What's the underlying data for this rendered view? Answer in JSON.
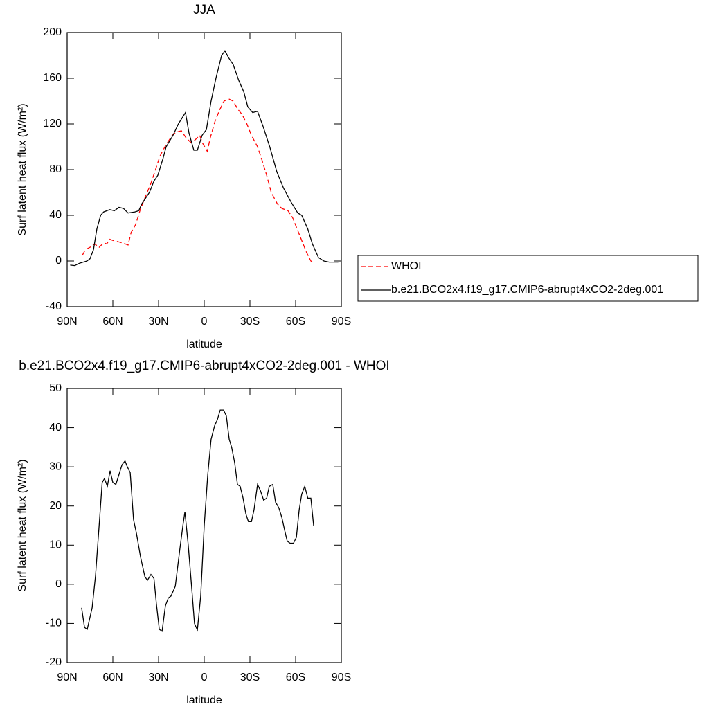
{
  "chart_data": [
    {
      "type": "line",
      "title": "JJA",
      "xlabel": "latitude",
      "ylabel": "Surf latent heat flux (W/m²)",
      "xlim": [
        90,
        -90
      ],
      "xticks": [
        {
          "value": 90,
          "label": "90N"
        },
        {
          "value": 60,
          "label": "60N"
        },
        {
          "value": 30,
          "label": "30N"
        },
        0,
        {
          "value": -30,
          "label": "30S"
        },
        {
          "value": -60,
          "label": "60S"
        },
        {
          "value": -90,
          "label": "90S"
        }
      ],
      "ylim": [
        -40,
        200
      ],
      "yticks": [
        -40,
        0,
        40,
        80,
        120,
        160,
        200
      ],
      "legend": "right",
      "series": [
        {
          "name": "WHOI",
          "color": "#ff0000",
          "dashed": true,
          "x": [
            80,
            78,
            75,
            72,
            69,
            66,
            64,
            62,
            60,
            57,
            54,
            50,
            48,
            45,
            42,
            39,
            35,
            32,
            29,
            25,
            21,
            18,
            15,
            12,
            9,
            6,
            3,
            1,
            -2,
            -4,
            -7,
            -10,
            -13,
            -16,
            -19,
            -22,
            -25,
            -28,
            -31,
            -35,
            -38,
            -41,
            -44,
            -48,
            -51,
            -55,
            -58,
            -61,
            -64,
            -67,
            -70,
            -72
          ],
          "values": [
            5,
            10,
            12,
            15,
            12,
            16,
            15,
            19,
            18,
            17,
            16,
            14,
            25,
            32,
            45,
            55,
            68,
            80,
            92,
            102,
            110,
            113,
            114,
            108,
            104,
            106,
            110,
            103,
            96,
            108,
            122,
            132,
            140,
            142,
            140,
            133,
            128,
            120,
            110,
            100,
            88,
            75,
            60,
            50,
            46,
            44,
            38,
            28,
            18,
            8,
            0,
            -2
          ]
        },
        {
          "name": "b.e21.BCO2x4.f19_g17.CMIP6-abrupt4xCO2-2deg.001",
          "color": "#000000",
          "dashed": false,
          "x": [
            88,
            85,
            82,
            77,
            75,
            72.7,
            70.5,
            68,
            66,
            62,
            59,
            56,
            53,
            50,
            45.5,
            43,
            41,
            36,
            33,
            30.5,
            27,
            25,
            20.5,
            17,
            12.3,
            10,
            6.8,
            4.5,
            1.4,
            -1.4,
            -4.5,
            -7.7,
            -11.4,
            -13.6,
            -16,
            -19,
            -22.7,
            -26,
            -28.6,
            -31.8,
            -35,
            -38.6,
            -43,
            -47.7,
            -52,
            -56.8,
            -61.4,
            -64,
            -68,
            -71,
            -75,
            -78.6,
            -82,
            -88
          ],
          "values": [
            -3.6,
            -4,
            -2,
            0,
            2,
            10,
            28,
            40,
            43,
            45,
            44,
            47,
            46,
            42,
            43,
            44,
            50,
            60,
            70,
            75,
            90,
            100,
            110,
            120,
            130,
            112,
            97,
            97,
            110,
            115,
            140,
            160,
            180,
            184,
            178,
            172,
            158,
            148,
            135,
            130,
            131,
            118,
            100,
            78,
            64,
            52,
            42,
            40,
            28,
            15,
            3,
            0,
            -1,
            -1
          ]
        }
      ]
    },
    {
      "type": "line",
      "title": "b.e21.BCO2x4.f19_g17.CMIP6-abrupt4xCO2-2deg.001 - WHOI",
      "xlabel": "latitude",
      "ylabel": "Surf latent heat flux (W/m²)",
      "xlim": [
        90,
        -90
      ],
      "xticks": [
        {
          "value": 90,
          "label": "90N"
        },
        {
          "value": 60,
          "label": "60N"
        },
        {
          "value": 30,
          "label": "30N"
        },
        0,
        {
          "value": -30,
          "label": "30S"
        },
        {
          "value": -60,
          "label": "60S"
        },
        {
          "value": -90,
          "label": "90S"
        }
      ],
      "ylim": [
        -20,
        50
      ],
      "yticks": [
        -20,
        -10,
        0,
        10,
        20,
        30,
        40,
        50
      ],
      "series": [
        {
          "color": "#000000",
          "dashed": false,
          "x": [
            80.5,
            78.6,
            76.8,
            73.6,
            71.4,
            69,
            67,
            65.5,
            63.6,
            61.8,
            60,
            58,
            56,
            54,
            52,
            50.5,
            48.6,
            46.4,
            44.5,
            41.8,
            39,
            37.3,
            35,
            33,
            31.4,
            29.5,
            27.7,
            25.5,
            23.6,
            21.8,
            19,
            16,
            14,
            12.7,
            10.5,
            8,
            6.4,
            4.5,
            2.3,
            0,
            -2.3,
            -4.5,
            -6.8,
            -8.6,
            -10.5,
            -12.7,
            -14.5,
            -16.4,
            -18,
            -20,
            -21.8,
            -23.6,
            -25.5,
            -27.3,
            -29,
            -31,
            -32.7,
            -35,
            -36.8,
            -39,
            -41,
            -42.7,
            -45,
            -46.8,
            -49,
            -51,
            -52.7,
            -54.5,
            -56.4,
            -58.6,
            -60.5,
            -62.3,
            -64,
            -66,
            -68,
            -70,
            -71.8
          ],
          "values": [
            -6,
            -11,
            -11.5,
            -6,
            2,
            15,
            26,
            27,
            25,
            29,
            26,
            25.5,
            28,
            30.5,
            31.5,
            30,
            28.5,
            16.5,
            13,
            7,
            2,
            1,
            2.5,
            1.5,
            -5,
            -11.5,
            -12,
            -5.5,
            -3.5,
            -3,
            -0.5,
            9,
            15,
            18.5,
            10,
            -2,
            -10,
            -11.7,
            -3,
            15,
            28,
            37,
            40.5,
            42,
            44.5,
            44.5,
            43,
            37,
            35,
            31,
            25.5,
            25,
            22,
            18,
            16,
            16,
            19,
            25.5,
            24,
            21.5,
            22,
            25,
            25.5,
            21,
            19.5,
            17,
            14,
            11,
            10.5,
            10.5,
            12,
            19,
            23,
            25,
            22,
            22,
            15
          ]
        }
      ]
    }
  ]
}
